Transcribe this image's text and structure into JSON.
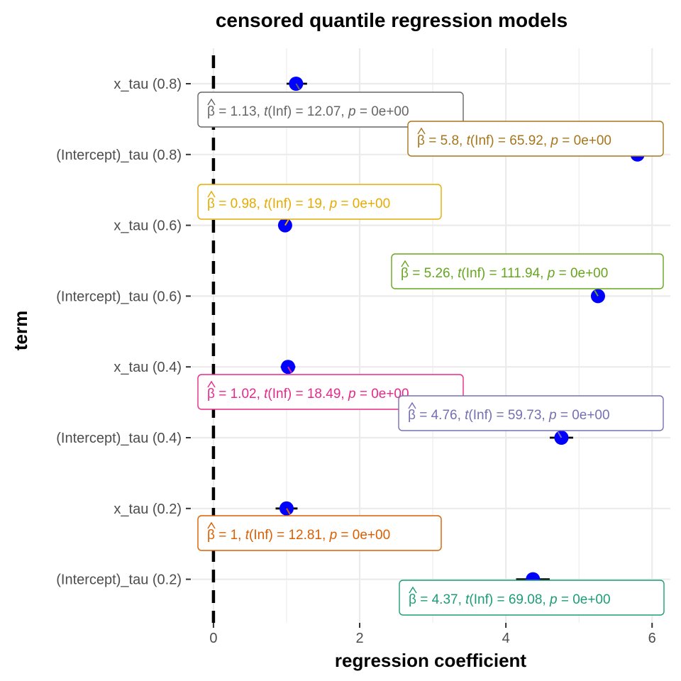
{
  "chart_data": {
    "type": "scatter",
    "title": "censored quantile regression models",
    "xlabel": "regression coefficient",
    "ylabel": "term",
    "xlim": [
      -0.3,
      6.25
    ],
    "x_ticks": [
      0,
      2,
      4,
      6
    ],
    "x_tick_labels": [
      "0",
      "2",
      "4",
      "6"
    ],
    "grid": true,
    "reference_line": {
      "x": 0,
      "style": "dashed",
      "color": "#000000"
    },
    "point_color": "#0000ff",
    "categories": [
      "x_tau (0.8)",
      "(Intercept)_tau (0.8)",
      "x_tau (0.6)",
      "(Intercept)_tau (0.6)",
      "x_tau (0.4)",
      "(Intercept)_tau (0.4)",
      "x_tau (0.2)",
      "(Intercept)_tau (0.2)"
    ],
    "points": [
      {
        "term": "x_tau (0.8)",
        "estimate": 1.13,
        "ci": [
          1.0,
          1.28
        ],
        "color": "#666666",
        "label": {
          "beta": "1.13",
          "t": "12.07",
          "p": "0e+00"
        }
      },
      {
        "term": "(Intercept)_tau (0.8)",
        "estimate": 5.8,
        "ci": [
          5.72,
          5.88
        ],
        "color": "#a6761d",
        "label": {
          "beta": "5.8",
          "t": "65.92",
          "p": "0e+00"
        }
      },
      {
        "term": "x_tau (0.6)",
        "estimate": 0.98,
        "ci": [
          0.93,
          1.03
        ],
        "color": "#e6ab02",
        "label": {
          "beta": "0.98",
          "t": "19",
          "p": "0e+00"
        }
      },
      {
        "term": "(Intercept)_tau (0.6)",
        "estimate": 5.26,
        "ci": [
          5.17,
          5.35
        ],
        "color": "#66a61e",
        "label": {
          "beta": "5.26",
          "t": "111.94",
          "p": "0e+00"
        }
      },
      {
        "term": "x_tau (0.4)",
        "estimate": 1.02,
        "ci": [
          0.92,
          1.12
        ],
        "color": "#e7298a",
        "label": {
          "beta": "1.02",
          "t": "18.49",
          "p": "0e+00"
        }
      },
      {
        "term": "(Intercept)_tau (0.4)",
        "estimate": 4.76,
        "ci": [
          4.6,
          4.92
        ],
        "color": "#7570b3",
        "label": {
          "beta": "4.76",
          "t": "59.73",
          "p": "0e+00"
        }
      },
      {
        "term": "x_tau (0.2)",
        "estimate": 1.0,
        "ci": [
          0.85,
          1.15
        ],
        "color": "#d95f02",
        "label": {
          "beta": "1",
          "t": "12.81",
          "p": "0e+00"
        }
      },
      {
        "term": "(Intercept)_tau (0.2)",
        "estimate": 4.37,
        "ci": [
          4.14,
          4.6
        ],
        "color": "#1b9e77",
        "label": {
          "beta": "4.37",
          "t": "69.08",
          "p": "0e+00"
        }
      }
    ]
  }
}
